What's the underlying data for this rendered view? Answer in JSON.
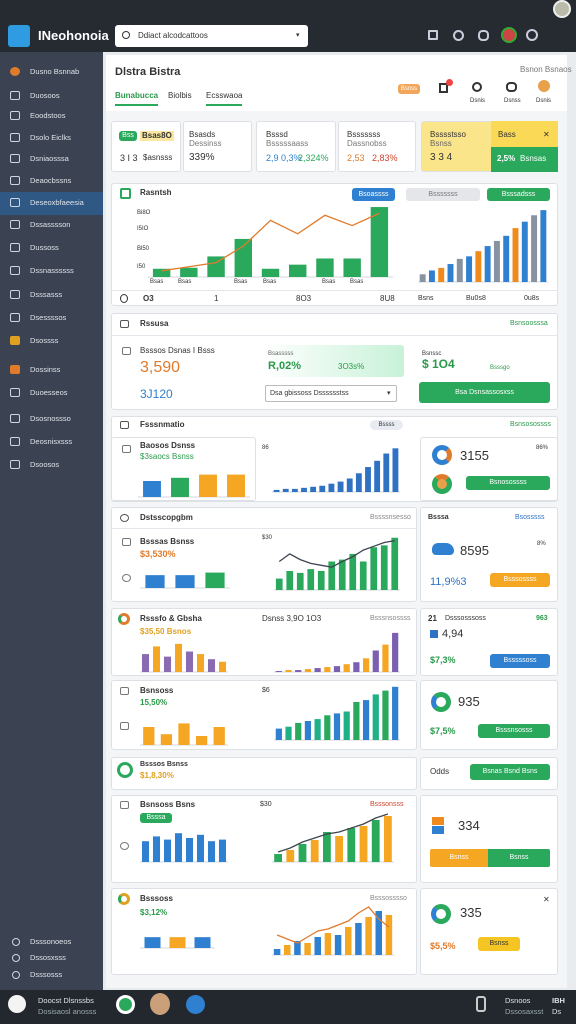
{
  "topbar": {
    "app_name": "INeohonoia",
    "search": "Ddiact alcodcattoos"
  },
  "sidebar": {
    "items": [
      "Dusno Bsnnab",
      "Duosoos",
      "Eoodstoos",
      "Dsolo Eiclks",
      "Dsniaosssa",
      "Deaocbssns",
      "Deseoxbfaeesia",
      "Dssasssson",
      "Dussoss",
      "Dssnassssss",
      "Dsssasss",
      "Dsessssos",
      "Dsossss",
      "Dossinss",
      "Duoesseos",
      "Dsosnossso",
      "Deosnisxsss",
      "Dsoosos"
    ],
    "footer_items": [
      "Dsssonoeos",
      "Dssosxsss",
      "Dsssosss"
    ]
  },
  "bottombar": {
    "user": "Doocst Dlsnssbs",
    "user_sub": "Dosisaosl anosss",
    "right": "Dsnoos",
    "right_sub": "Dssosaxsst",
    "code": "IBH",
    "code_sub": "Ds"
  },
  "page": {
    "title": "Dlstra Bistra",
    "subtitle": "Bsnon Bsnaos",
    "tabs": [
      "Bunabucca",
      "Biolbis",
      "Ecsswaoa"
    ],
    "badge": "Bsnss",
    "actions": [
      "Dsnis",
      "Dsnss",
      "Dsnis"
    ]
  },
  "kpis": [
    {
      "tag": "Bss",
      "title": "Bsas8O",
      "value": "3 I 3",
      "change": "$asnsss"
    },
    {
      "title": "Bsasds",
      "sub": "Dessinss",
      "value": "339%"
    },
    {
      "title": "Bsssd",
      "sub": "Bsssssaass",
      "value": "2,9 0,3%",
      "change": "2,324%"
    },
    {
      "title": "Bsssssss",
      "sub": "Dassnobss",
      "value": "2,53",
      "change": "2,83%"
    },
    {
      "title": "Bsssstsso",
      "sub": "Bsnss",
      "value": "3 3 4",
      "tag": "Bass",
      "change": "2,5%",
      "note": "Bsnsas"
    }
  ],
  "sections": [
    {
      "title": "Rasntsh",
      "buttons": [
        "Bsoassss",
        "Bsssssss",
        "Bsssadsss"
      ],
      "yticks": [
        "Bi8O",
        "I5IO",
        "Bl50",
        "I50"
      ],
      "xlabels": [
        "Bsas",
        "Bsas",
        "Bsas",
        "Bsas",
        "Bsas",
        "Bsas"
      ],
      "footer": [
        "O3",
        "1",
        "8O3",
        "8U8",
        "Bsns",
        "Bu0s8",
        "0u8s"
      ]
    },
    {
      "title": "Rssusa",
      "link": "Bsnsoosssa",
      "label": "Bsssos Dsnas I Bsss",
      "value": "3,590",
      "value2": "3J120",
      "box_label": "Bsasssss",
      "box_value": "R,02%",
      "box_value2": "3O3s%",
      "select": "Dsa gbissoss Dsssssstss",
      "side_label": "Bsnssc",
      "side_value": "$ 1O4",
      "side_note": "Bsssgo",
      "button": "Bsa Dsnsassosxss"
    },
    {
      "title": "Fsssnmatio",
      "search": "Bssss",
      "link": "Bsnsosossss",
      "label": "Baosos Dsnss",
      "sub": "$3saocs Bsnss",
      "axis": "86",
      "side_value": "3155",
      "side_pct": "86%",
      "button": "Bsnosossss"
    },
    {
      "title": "Dstsscopgbm",
      "note": "Bssssnsesso",
      "side_title": "Bsssa",
      "side_link": "Bsosssss",
      "label": "Bsssas Bsnss",
      "value": "$3,530%",
      "axis": "$30",
      "side_value": "8595",
      "side_pct": "8%",
      "side_value2": "11,9%3",
      "button": "Bsssossss"
    },
    {
      "title": "Rsssfo & Gbsha",
      "value": "$35,50 Bsnos",
      "mid_title": "Dsnss 3,9O 1O3",
      "note": "Bsssnsossss",
      "side_num": "21",
      "side_title": "Dsssosssoss",
      "side_pct": "963",
      "side_value": "4,94",
      "side_value2": "$7,3%",
      "button": "Bsssssoss"
    },
    {
      "title": "Bsnsoss",
      "value": "15,50%",
      "axis": "$6",
      "side_value": "935",
      "side_value2": "$7,5%",
      "button": "Bsssnsosss"
    },
    {
      "title": "Bsssos Bsnss",
      "value": "$1,8,30%",
      "side_title": "Odds",
      "button": "Bsnas Bsnd Bsns"
    },
    {
      "title": "Bsnsoss Bsns",
      "badge": "Bsssa",
      "axis": "$30",
      "note": "Bsssonsss",
      "side_value": "334",
      "buttons": [
        "Bsnss",
        "Bsnss"
      ]
    },
    {
      "title": "Bsssoss",
      "value": "$3,12%",
      "note": "Bsssosssso",
      "side_value": "335",
      "side_value2": "$5,5%",
      "button": "Bsnss"
    }
  ],
  "charts": [
    {
      "ylim": [
        0,
        70
      ],
      "values": [
        8,
        9,
        20,
        37,
        8,
        12,
        18,
        18,
        68
      ],
      "colors": [
        "#2aa85c"
      ],
      "line": [
        6,
        10,
        14,
        30,
        55,
        42,
        60,
        50,
        62
      ],
      "line_color": "#e07b2c"
    },
    {
      "ylim": [
        0,
        60
      ],
      "values": [
        6,
        9,
        11,
        14,
        18,
        20,
        24,
        28,
        32,
        36,
        42,
        47,
        52,
        56
      ],
      "colors": [
        "#8892a0",
        "#2f80d0",
        "#f08a1c",
        "#2f80d0"
      ]
    },
    {
      "ylim": [
        0,
        20
      ],
      "values": [
        10,
        12,
        14,
        14
      ],
      "colors": [
        "#2f80d0",
        "#2aa85c",
        "#f5a623",
        "#f5a623"
      ]
    },
    {
      "ylim": [
        0,
        50
      ],
      "values": [
        2,
        3,
        3,
        4,
        5,
        6,
        8,
        10,
        13,
        18,
        24,
        30,
        37,
        42
      ],
      "colors": [
        "#2f72c4"
      ]
    },
    {
      "ylim": [
        0,
        14
      ],
      "values": [
        10,
        10,
        12
      ],
      "colors": [
        "#2f80d0",
        "#2f80d0",
        "#2aa85c"
      ]
    },
    {
      "ylim": [
        0,
        60
      ],
      "values": [
        12,
        20,
        18,
        22,
        20,
        30,
        32,
        38,
        30,
        45,
        47,
        55
      ],
      "colors": [
        "#2aa85c"
      ],
      "line": [
        30,
        38,
        32,
        28,
        26,
        24,
        30,
        35,
        42,
        46,
        50,
        52
      ],
      "line_color": "#3d4650"
    },
    {
      "ylim": [
        0,
        25
      ],
      "values": [
        14,
        20,
        12,
        22,
        16,
        14,
        10,
        8
      ],
      "colors": [
        "#8a6ab0",
        "#f5a623"
      ]
    },
    {
      "ylim": [
        0,
        45
      ],
      "values": [
        1,
        2,
        2,
        3,
        4,
        5,
        6,
        8,
        10,
        14,
        22,
        28,
        40
      ],
      "colors": [
        "#7b5fb0",
        "#f5a623"
      ]
    },
    {
      "ylim": [
        0,
        15
      ],
      "values": [
        10,
        6,
        12,
        5,
        10
      ],
      "colors": [
        "#f5a623"
      ]
    },
    {
      "ylim": [
        0,
        60
      ],
      "values": [
        12,
        14,
        18,
        20,
        22,
        26,
        28,
        30,
        40,
        42,
        48,
        52,
        56
      ],
      "colors": [
        "#2f80d0",
        "#20b088",
        "#2aa85c"
      ]
    },
    {
      "ylim": [
        0,
        40
      ],
      "values": [
        26,
        32,
        28,
        36,
        30,
        34,
        26,
        28
      ],
      "colors": [
        "#2f80d0"
      ]
    },
    {
      "ylim": [
        0,
        50
      ],
      "values": [
        8,
        12,
        18,
        22,
        30,
        26,
        34,
        36,
        42,
        46
      ],
      "colors": [
        "#2aa85c",
        "#f5a623"
      ],
      "line": [
        10,
        14,
        20,
        24,
        28,
        30,
        34,
        38,
        44,
        48
      ],
      "line_color": "#3d4650"
    },
    {
      "ylim": [
        0,
        12
      ],
      "values": [
        10,
        10,
        10
      ],
      "colors": [
        "#2f80d0",
        "#f5a623",
        "#2f80d0"
      ]
    },
    {
      "ylim": [
        0,
        50
      ],
      "values": [
        6,
        10,
        14,
        12,
        18,
        22,
        20,
        28,
        32,
        38,
        44,
        40
      ],
      "colors": [
        "#2f80d0",
        "#f5a623"
      ],
      "line": [
        20,
        16,
        12,
        18,
        24,
        26,
        30,
        34,
        42,
        48,
        36,
        28
      ],
      "line_color": "#e07b2c"
    }
  ]
}
